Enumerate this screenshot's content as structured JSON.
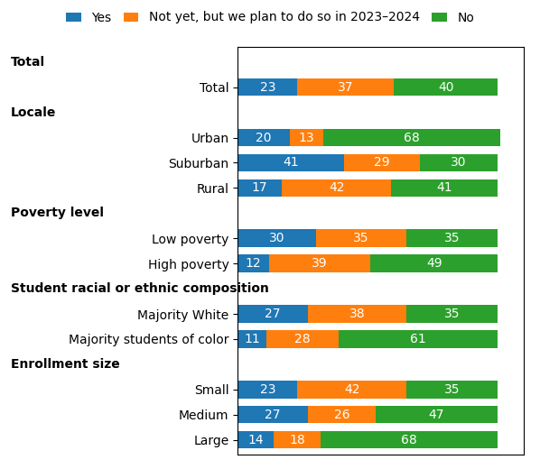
{
  "chart_data": {
    "type": "bar",
    "orientation": "horizontal",
    "stacked": true,
    "categories": [
      "Total",
      "Urban",
      "Suburban",
      "Rural",
      "Low poverty",
      "High poverty",
      "Majority White",
      "Majority students of color",
      "Small",
      "Medium",
      "Large"
    ],
    "groups": [
      {
        "name": "Total",
        "categories": [
          "Total"
        ]
      },
      {
        "name": "Locale",
        "categories": [
          "Urban",
          "Suburban",
          "Rural"
        ]
      },
      {
        "name": "Poverty level",
        "categories": [
          "Low poverty",
          "High poverty"
        ]
      },
      {
        "name": "Student racial or ethnic composition",
        "categories": [
          "Majority White",
          "Majority students of color"
        ]
      },
      {
        "name": "Enrollment size",
        "categories": [
          "Small",
          "Medium",
          "Large"
        ]
      }
    ],
    "series": [
      {
        "name": "Yes",
        "values": [
          23,
          20,
          41,
          17,
          30,
          12,
          27,
          11,
          23,
          27,
          14
        ]
      },
      {
        "name": "Not yet, but we plan to do so in 2023–2024",
        "values": [
          37,
          13,
          29,
          42,
          35,
          39,
          38,
          28,
          42,
          26,
          18
        ]
      },
      {
        "name": "No",
        "values": [
          40,
          68,
          30,
          41,
          35,
          49,
          35,
          61,
          35,
          47,
          68
        ]
      }
    ],
    "xlim": [
      0,
      110
    ],
    "tick_labels": "y",
    "data_labels": true,
    "legend": "upper center",
    "grid": false
  }
}
